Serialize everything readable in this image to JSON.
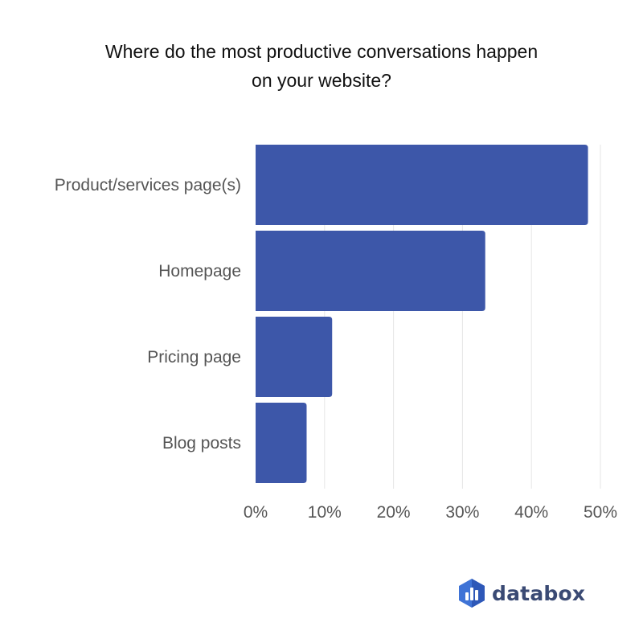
{
  "chart_data": {
    "type": "bar",
    "orientation": "horizontal",
    "title_lines": [
      "Where do the most productive conversations happen",
      "on your website?"
    ],
    "categories": [
      "Product/services page(s)",
      "Homepage",
      "Pricing page",
      "Blog posts"
    ],
    "values": [
      48.2,
      33.3,
      11.1,
      7.4
    ],
    "xlim": [
      0,
      50
    ],
    "x_ticks": [
      0,
      10,
      20,
      30,
      40,
      50
    ],
    "x_tick_labels": [
      "0%",
      "10%",
      "20%",
      "30%",
      "40%",
      "50%"
    ],
    "xlabel": "",
    "ylabel": "",
    "grid": "vertical",
    "bar_color": "#3d57a9",
    "grid_color": "#e6e6e6"
  },
  "branding": {
    "logo_text": "databox",
    "logo_icon": "databox-logo-icon",
    "logo_color": "#3a4a74",
    "logo_accent": "#3f73d6"
  }
}
